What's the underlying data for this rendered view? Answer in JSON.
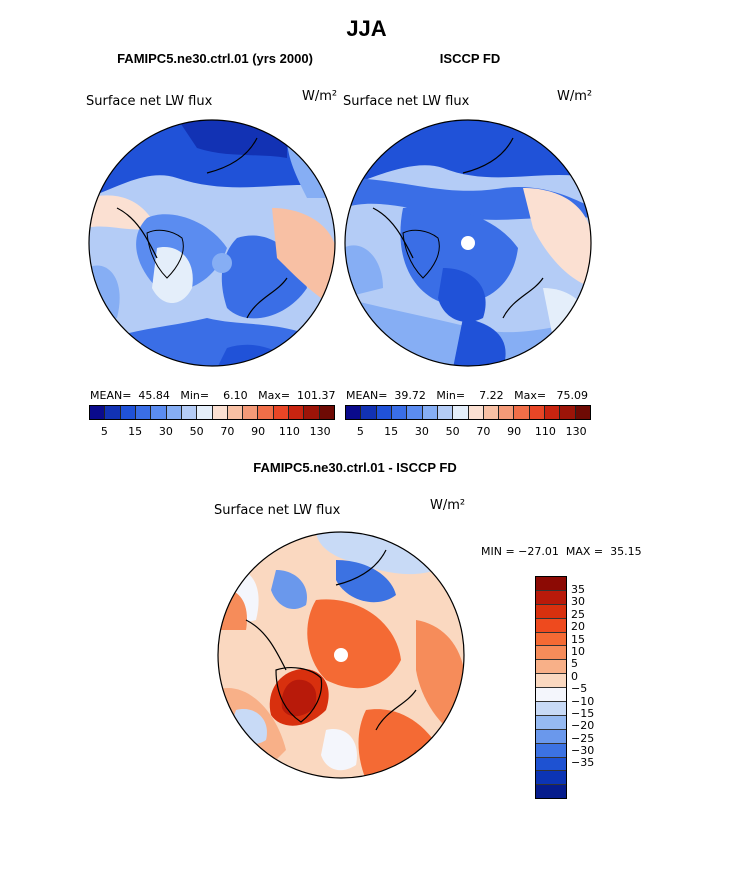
{
  "title": "JJA",
  "panels": {
    "left": {
      "title": "FAMIPC5.ne30.ctrl.01 (yrs 2000)",
      "label": "Surface net LW flux",
      "unit": "W/m²",
      "stats": "MEAN=  45.84   Min=    6.10   Max=  101.37"
    },
    "right": {
      "title": "ISCCP FD",
      "label": "Surface net LW flux",
      "unit": "W/m²",
      "stats": "MEAN=  39.72   Min=    7.22   Max=   75.09"
    },
    "diff": {
      "title": "FAMIPC5.ne30.ctrl.01 - ISCCP FD",
      "label": "Surface net LW flux",
      "unit": "W/m²",
      "minmax": "MIN = −27.01  MAX =  35.15"
    }
  },
  "colorbar_top": {
    "ticks": [
      "5",
      "15",
      "30",
      "50",
      "70",
      "90",
      "110",
      "130"
    ],
    "colors": [
      "#0a0a8c",
      "#1232b4",
      "#2052d8",
      "#3a6ee6",
      "#5b8cf0",
      "#86aef4",
      "#b4ccf6",
      "#e4eefa",
      "#fbe0d2",
      "#f8c0a4",
      "#f49a78",
      "#f06e48",
      "#e84626",
      "#c82410",
      "#9c1408",
      "#6e0a04"
    ]
  },
  "colorbar_diff": {
    "labels": [
      "35",
      "30",
      "25",
      "20",
      "15",
      "10",
      "5",
      "0",
      "−5",
      "−10",
      "−15",
      "−20",
      "−25",
      "−30",
      "−35"
    ],
    "colors": [
      "#8c0a04",
      "#b81a0a",
      "#d8300e",
      "#ee4a1e",
      "#f46a34",
      "#f68c5a",
      "#f8b088",
      "#fad8c0",
      "#f4f6fc",
      "#c8daf6",
      "#96baf2",
      "#6a98ec",
      "#3c72e2",
      "#1e52d2",
      "#0c34b4",
      "#061c8c"
    ]
  }
}
